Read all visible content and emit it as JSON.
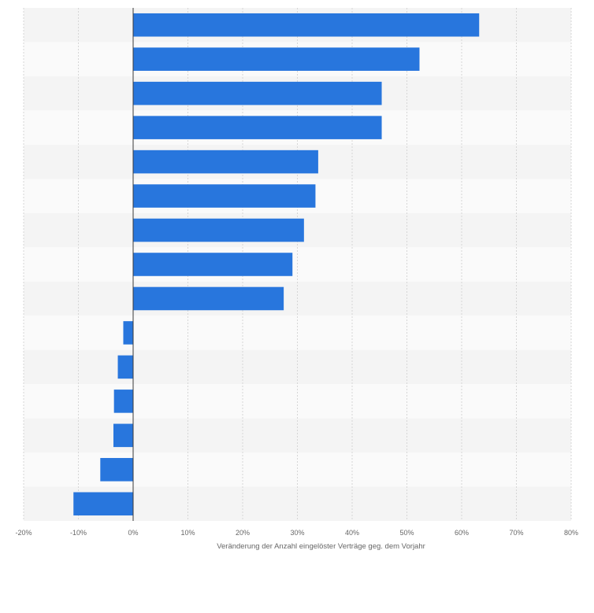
{
  "chart_data": {
    "type": "bar",
    "orientation": "horizontal",
    "title": "",
    "xlabel": "Veränderung der Anzahl eingelöster Verträge geg. dem Vorjahr",
    "ylabel": "",
    "xlim": [
      -20,
      80
    ],
    "xticks": [
      "-20%",
      "-10%",
      "0%",
      "10%",
      "20%",
      "30%",
      "40%",
      "50%",
      "60%",
      "70%",
      "80%"
    ],
    "values": [
      63.2,
      52.3,
      45.4,
      45.4,
      33.8,
      33.3,
      31.2,
      29.1,
      27.5,
      -1.8,
      -2.8,
      -3.5,
      -3.6,
      -6.0,
      -10.9
    ],
    "grid": true,
    "legend": "none",
    "bar_color": "#2876dd",
    "band_colors": [
      "#f4f4f4",
      "#fafafa"
    ]
  }
}
